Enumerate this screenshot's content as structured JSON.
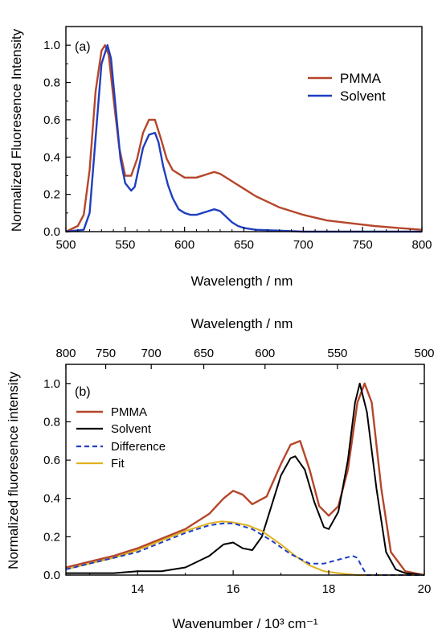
{
  "chart_data": [
    {
      "type": "line",
      "panel_label": "(a)",
      "xlabel": "Wavelength / nm",
      "ylabel": "Normalized Fluoresence Intensity",
      "xlim": [
        500,
        800
      ],
      "ylim": [
        0,
        1.1
      ],
      "x_ticks": [
        "500",
        "550",
        "600",
        "650",
        "700",
        "750",
        "800"
      ],
      "y_ticks": [
        "0.0",
        "0.2",
        "0.4",
        "0.6",
        "0.8",
        "1.0"
      ],
      "legend_position": "top-right",
      "series": [
        {
          "name": "PMMA",
          "color": "#b5462a",
          "x": [
            500,
            510,
            515,
            520,
            525,
            530,
            533,
            536,
            540,
            545,
            550,
            555,
            560,
            565,
            570,
            575,
            580,
            585,
            590,
            600,
            610,
            620,
            625,
            630,
            640,
            650,
            660,
            670,
            680,
            690,
            700,
            720,
            740,
            760,
            780,
            800
          ],
          "y": [
            0.0,
            0.03,
            0.09,
            0.33,
            0.75,
            0.97,
            1.0,
            0.95,
            0.72,
            0.45,
            0.3,
            0.3,
            0.39,
            0.53,
            0.6,
            0.6,
            0.5,
            0.39,
            0.33,
            0.29,
            0.29,
            0.31,
            0.32,
            0.31,
            0.27,
            0.23,
            0.19,
            0.16,
            0.13,
            0.11,
            0.09,
            0.06,
            0.045,
            0.03,
            0.02,
            0.01
          ]
        },
        {
          "name": "Solvent",
          "color": "#1f3fbf",
          "x": [
            500,
            515,
            520,
            525,
            530,
            535,
            538,
            542,
            546,
            550,
            555,
            558,
            560,
            565,
            570,
            575,
            578,
            582,
            586,
            590,
            595,
            600,
            605,
            610,
            615,
            620,
            625,
            630,
            635,
            640,
            645,
            650,
            660,
            680,
            700,
            720,
            750,
            800
          ],
          "y": [
            0.0,
            0.01,
            0.1,
            0.5,
            0.9,
            1.0,
            0.93,
            0.66,
            0.39,
            0.26,
            0.22,
            0.24,
            0.3,
            0.45,
            0.52,
            0.53,
            0.48,
            0.35,
            0.25,
            0.18,
            0.12,
            0.1,
            0.09,
            0.09,
            0.1,
            0.11,
            0.12,
            0.11,
            0.08,
            0.05,
            0.03,
            0.02,
            0.01,
            0.005,
            0.0,
            0.0,
            0.0,
            0.0
          ]
        }
      ]
    },
    {
      "type": "line",
      "panel_label": "(b)",
      "xlabel": "Wavenumber / 10³ cm⁻¹",
      "x2label": "Wavelength / nm",
      "ylabel": "Normalized fluoresence intensity",
      "xlim": [
        12.5,
        20
      ],
      "ylim": [
        0,
        1.1
      ],
      "x_ticks": [
        "14",
        "16",
        "18",
        "20"
      ],
      "x2_ticks": [
        "800",
        "750",
        "700",
        "650",
        "600",
        "550",
        "500"
      ],
      "y_ticks": [
        "0.0",
        "0.2",
        "0.4",
        "0.6",
        "0.8",
        "1.0"
      ],
      "legend_position": "top-left",
      "series": [
        {
          "name": "PMMA",
          "color": "#b5462a",
          "dash": "",
          "x": [
            12.5,
            13,
            13.5,
            14,
            14.5,
            15,
            15.5,
            15.8,
            16,
            16.2,
            16.4,
            16.7,
            17,
            17.2,
            17.4,
            17.6,
            17.8,
            18,
            18.2,
            18.4,
            18.6,
            18.75,
            18.9,
            19.1,
            19.3,
            19.6,
            20
          ],
          "y": [
            0.04,
            0.07,
            0.1,
            0.14,
            0.19,
            0.24,
            0.32,
            0.4,
            0.44,
            0.42,
            0.37,
            0.41,
            0.58,
            0.68,
            0.7,
            0.55,
            0.36,
            0.31,
            0.36,
            0.55,
            0.9,
            1.0,
            0.9,
            0.45,
            0.12,
            0.02,
            0.0
          ]
        },
        {
          "name": "Solvent",
          "color": "#000000",
          "dash": "",
          "x": [
            12.5,
            13,
            13.5,
            14,
            14.5,
            15,
            15.5,
            15.8,
            16,
            16.2,
            16.4,
            16.6,
            16.8,
            17,
            17.2,
            17.3,
            17.5,
            17.7,
            17.9,
            18,
            18.2,
            18.4,
            18.55,
            18.65,
            18.8,
            19,
            19.2,
            19.4,
            19.6,
            20
          ],
          "y": [
            0.01,
            0.01,
            0.01,
            0.02,
            0.02,
            0.04,
            0.1,
            0.16,
            0.17,
            0.14,
            0.13,
            0.2,
            0.36,
            0.52,
            0.61,
            0.62,
            0.55,
            0.38,
            0.25,
            0.24,
            0.33,
            0.6,
            0.9,
            1.0,
            0.85,
            0.45,
            0.12,
            0.03,
            0.01,
            0.0
          ]
        },
        {
          "name": "Difference",
          "color": "#1f3fbf",
          "dash": "6,4",
          "x": [
            12.5,
            13,
            13.5,
            14,
            14.5,
            15,
            15.5,
            15.8,
            16,
            16.4,
            16.8,
            17.2,
            17.6,
            17.9,
            18.2,
            18.5,
            18.6,
            18.7,
            18.8,
            19,
            19.5,
            20
          ],
          "y": [
            0.03,
            0.06,
            0.09,
            0.12,
            0.17,
            0.22,
            0.26,
            0.27,
            0.27,
            0.24,
            0.18,
            0.11,
            0.06,
            0.06,
            0.08,
            0.1,
            0.09,
            0.04,
            0.0,
            0.0,
            0.0,
            0.0
          ]
        },
        {
          "name": "Fit",
          "color": "#e0b020",
          "dash": "",
          "x": [
            12.5,
            13,
            13.5,
            14,
            14.5,
            15,
            15.5,
            15.75,
            16,
            16.3,
            16.6,
            17,
            17.3,
            17.6,
            17.9,
            18.2,
            18.6,
            19,
            20
          ],
          "y": [
            0.03,
            0.06,
            0.09,
            0.13,
            0.18,
            0.23,
            0.27,
            0.28,
            0.275,
            0.26,
            0.23,
            0.16,
            0.1,
            0.05,
            0.02,
            0.01,
            0.0,
            0.0,
            0.0
          ]
        }
      ]
    }
  ]
}
